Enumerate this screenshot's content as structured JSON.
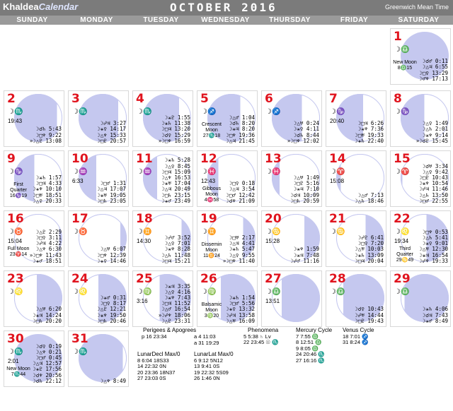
{
  "header": {
    "brand": "Khaldea",
    "brand_cal": "Calendar",
    "month": "OCTOBER 2016",
    "timezone": "Greenwich Mean Time"
  },
  "weekdays": [
    "SUNDAY",
    "MONDAY",
    "TUESDAY",
    "WEDNESDAY",
    "THURSDAY",
    "FRIDAY",
    "SATURDAY"
  ],
  "days": [
    {
      "n": "1",
      "sign": "☽♎",
      "phase": "New Moon 8♎15",
      "aspects": "☽☌♂ 0:11\n☽△♃ 6:55\n☽□♀ 13:29\n☽♂♆ 17:13"
    },
    {
      "n": "2",
      "sign": "☽♏",
      "stime": "19:43",
      "aspects": "☽☌♄ 5:43\n☽□♆ 9:22\n»☽△♇ 13:08"
    },
    {
      "n": "3",
      "sign": "☽♏",
      "aspects": "☽☍♃ 3:27\n☽⚹♀ 14:17\n☽△♆ 15:33\n☽□♇ 20:57"
    },
    {
      "n": "4",
      "sign": "☽♏",
      "aspects": "☽⚹♇ 1:55\n☽⚹♄ 11:38\n☽□♃ 13:20\n☽☌♀ 15:29\n»☽□♆ 16:59"
    },
    {
      "n": "5",
      "sign": "☽♐",
      "phase": "Crescent Moon 27♏18",
      "aspects": "☽△♂ 1:04\n☽☌♄ 8:20\n☽⚹♃ 8:20\n☽□♆ 19:36\n☽△♃ 21:45"
    },
    {
      "n": "6",
      "sign": "☽♐",
      "aspects": "☽△♅ 0:24\n☽⚹♀ 4:11\n☽☌♄ 8:44\n»☽□♆ 12:02"
    },
    {
      "n": "7",
      "sign": "☽♑",
      "stime": "20:40",
      "aspects": "☽□♃ 6:26\n☽⚹♆ 7:36\n☽□♅ 19:33\n☽⚹♄ 22:40"
    },
    {
      "n": "8",
      "sign": "☽♑",
      "aspects": "☽△♀ 1:49\n☽△♄ 2:01\n☽⚹♆ 9:14\n»☽☌♇ 15:45"
    },
    {
      "n": "9",
      "sign": "☽♑",
      "phase": "First Quarter 16♑19",
      "aspects": "☽⚹♄ 1:57\n☽□♃ 4:33\n☽⚹♆ 10:10\n☽□♅ 18:51\n☽△♀ 20:33"
    },
    {
      "n": "10",
      "sign": "☽♒",
      "stime": "6:33",
      "aspects": "☽□♂ 1:31\n☽△♃ 17:07\n☽⚹♅ 19:05\n☽□♄ 23:05"
    },
    {
      "n": "11",
      "sign": "☽♒",
      "aspects": "☽⚹♄ 5:28\n☽△♀ 8:45\n☽□♃ 15:09\n☽△♆ 16:53\n☽⚹♅ 17:04\n☽△♃ 20:49\n☽□♄ 23:15\n☽⚹♂ 23:49"
    },
    {
      "n": "12",
      "sign": "☽♓",
      "stime": "12:43",
      "phase": "Gibbous Moon 4♓58",
      "aspects": "☽□♀ 0:18\n☽△♃ 3:54\n☽□♂ 12:42\n☽☌♆ 21:09"
    },
    {
      "n": "13",
      "sign": "☽♓",
      "aspects": "☽△♅ 1:49\n☽□♇ 5:16\n☽⚹♃ 7:10\n☽☌♃ 10:09\n☽□♄ 20:59"
    },
    {
      "n": "14",
      "sign": "☽♈",
      "stime": "15:08",
      "aspects": "☽△♂ 7:13\n☽△♄ 18:46"
    },
    {
      "n": "15",
      "sign": "☽♈",
      "aspects": "☽☌♅ 3:34\n☽△♀ 9:42\n☽□♇ 10:43\n☽⚹♆ 10:54\n☽☍♃ 11:46\n☽△♄ 13:50\n☽□♂ 22:55"
    },
    {
      "n": "16",
      "sign": "☽♉",
      "stime": "15:04",
      "phase": "Full Moon 23♈14",
      "aspects": "☽△♇ 2:29\n☽□♀ 3:11\n☽☍♃ 4:22\n☽△♆ 6:30\n»☽□♆ 11:43\n☽⚹♂ 18:51"
    },
    {
      "n": "17",
      "sign": "☽♉",
      "aspects": "☽△♅ 6:07\n☽□♆ 12:39\n☽⚹♀ 14:46"
    },
    {
      "n": "18",
      "sign": "☽♊",
      "stime": "14:30",
      "aspects": "☽☍♂ 3:52\n☽△♀ 7:01\n☽⚹♆ 8:28\n☽△♄ 11:48\n☽□♃ 15:21"
    },
    {
      "n": "19",
      "sign": "☽♊",
      "phase": "Dissemin Moon 11♊24",
      "aspects": "☽□♅ 2:17\n☽△♃ 4:41\n☽⚹♄ 5:47\n☽△♀ 9:55\n»☽□♆ 11:40"
    },
    {
      "n": "20",
      "sign": "☽♋",
      "stime": "15:28",
      "aspects": "☽⚹♆ 1:59\n☽⚹♃ 7:48\n☽☍♂ 11:16"
    },
    {
      "n": "21",
      "sign": "☽♋",
      "aspects": "☽☍♇ 6:41\n☽□♀ 7:20\n☽△♅ 10:03\n☽⚹♄ 13:09\n☽□♃ 20:04"
    },
    {
      "n": "22",
      "sign": "☽♌",
      "stime": "19:34",
      "phase": "Third Quarter 29♋49",
      "aspects": "☽□♆ 0:53\n☽△♄ 5:41\n☽⚹♀ 9:01\n☽△♅ 12:30\n☽⚹♃ 16:54\n☽☍♆ 19:33"
    },
    {
      "n": "23",
      "sign": "☽♌",
      "aspects": "☽△♅ 6:20\n☽⚹♃ 14:24\n☽□♄ 20:20"
    },
    {
      "n": "24",
      "sign": "☽♌",
      "aspects": "☽⚹♂ 0:31\n☽□♀ 8:17\n☽△♇ 12:21\n☽⚹♆ 19:50\n☽□♄ 20:46"
    },
    {
      "n": "25",
      "sign": "☽♍",
      "stime": "3:16",
      "aspects": "☽⚹♃ 3:35\n☽△♀ 4:16\n☽⚹♆ 7:43\n☽□♃ 11:52\n☽△♂ 16:54\n»☽☍♆ 18:06\n☽△♇ 23:31"
    },
    {
      "n": "26",
      "sign": "☽♍",
      "phase": "Balsamic Moon 3♍20",
      "aspects": "☽⚹♄ 1:54\n☽□♂ 5:56\n☽⚹♀ 13:32\n☽☍♃ 13:58\n☽△♅ 16:09"
    },
    {
      "n": "27",
      "sign": "☽♎",
      "stime": "13:51"
    },
    {
      "n": "28",
      "sign": "☽♎",
      "aspects": "☽☌♀ 10:43\n☽☍♅ 14:44\n☽□♇ 19:43"
    },
    {
      "n": "29",
      "sign": "☽♎",
      "aspects": "☽⚹♄ 4:06\n☽☌♃ 7:43\n☽⚹♂ 8:49"
    },
    {
      "n": "30",
      "sign": "☽♏",
      "stime": "2:01",
      "phase": "New Moon 7♏44",
      "aspects": "☽☌♀ 0:19\n☽△♆ 0:21\n☽□♂ 0:45\n☽△♃ 12:57\n☽⚹♇ 17:56\n☽☌♆ 20:56\n☽☌♄ 22:12"
    },
    {
      "n": "31",
      "sign": "☽♏",
      "aspects": "☽△♆ 8:49"
    }
  ],
  "legend": {
    "perigees_title": "Perigees & Apogrees",
    "perigees": [
      "p  16 23:34",
      "a  4 11:03",
      "a 31 19:29"
    ],
    "phenomena_title": "Phenomena",
    "phenomena": [
      "5  5:38 ♄ Lv",
      "22 23:45 ☉ ♏"
    ],
    "mercury_title": "Mercury Cycle",
    "mercury": [
      "7  7:55 ♎",
      "8 12:51 ♎",
      "9  8:05 ♎",
      "24 20:46 ♏",
      "27 16:16 ♏"
    ],
    "venus_title": "Venus Cycle",
    "venus": [
      "18  7:01 ♐",
      "31  8:24 ♐"
    ],
    "decl_title": "LunarDecl Max/0",
    "decl": [
      "8   6:04 18S33",
      "14 22:32  0N",
      "20 23:36 18N37",
      "27 23:03  0S"
    ],
    "lat_title": "LunarLat Max/0",
    "lat": [
      "6   9:12 5N12",
      "13   9:41  0S",
      "19 22:32 5S09",
      "26   1:46  0N"
    ]
  }
}
